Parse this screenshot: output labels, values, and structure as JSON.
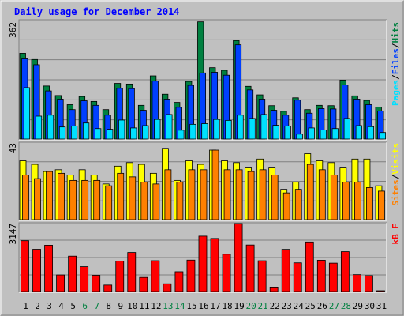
{
  "title": "Daily usage for December 2014",
  "panels": {
    "top": {
      "ymax_label": "362",
      "legend": [
        "Pages",
        "/",
        "Files",
        "/",
        "Hits"
      ]
    },
    "middle": {
      "ymax_label": "43",
      "legend": [
        "Sites",
        "/",
        "Visits"
      ]
    },
    "bottom": {
      "ymax_label": "3147",
      "legend": [
        "kB F"
      ]
    }
  },
  "colors": {
    "background": "#c0c0c0",
    "plot_bg": "#c0c0c0",
    "title": "#0000ff",
    "hits": "#008040",
    "files": "#0040ff",
    "pages": "#00e0ff",
    "visits": "#ffff00",
    "sites": "#ff8000",
    "kbytes": "#ff0000",
    "weekday_label": "#000000",
    "weekend_label": "#008040"
  },
  "chart_data": [
    {
      "type": "bar",
      "title": "Daily usage for December 2014",
      "categories": [
        "1",
        "2",
        "3",
        "4",
        "5",
        "6",
        "7",
        "8",
        "9",
        "10",
        "11",
        "12",
        "13",
        "14",
        "15",
        "16",
        "17",
        "18",
        "19",
        "20",
        "21",
        "22",
        "23",
        "24",
        "25",
        "26",
        "27",
        "28",
        "29",
        "30",
        "31"
      ],
      "weekend_days": [
        "6",
        "7",
        "13",
        "14",
        "20",
        "21",
        "27",
        "28"
      ],
      "ylim": [
        0,
        362
      ],
      "series": [
        {
          "name": "Hits",
          "values": [
            262,
            243,
            162,
            133,
            105,
            130,
            115,
            90,
            170,
            168,
            103,
            193,
            137,
            112,
            176,
            358,
            218,
            210,
            301,
            161,
            135,
            102,
            85,
            126,
            90,
            103,
            102,
            180,
            132,
            118,
            98
          ]
        },
        {
          "name": "Files",
          "values": [
            245,
            227,
            147,
            122,
            90,
            117,
            103,
            73,
            155,
            154,
            88,
            177,
            122,
            97,
            164,
            202,
            204,
            195,
            288,
            150,
            122,
            88,
            73,
            119,
            79,
            93,
            92,
            165,
            122,
            105,
            86
          ]
        },
        {
          "name": "Pages",
          "values": [
            157,
            70,
            73,
            37,
            40,
            49,
            32,
            30,
            58,
            34,
            41,
            60,
            75,
            27,
            45,
            47,
            60,
            57,
            73,
            63,
            75,
            42,
            40,
            15,
            34,
            28,
            32,
            63,
            41,
            38,
            20
          ]
        }
      ]
    },
    {
      "type": "bar",
      "categories": [
        "1",
        "2",
        "3",
        "4",
        "5",
        "6",
        "7",
        "8",
        "9",
        "10",
        "11",
        "12",
        "13",
        "14",
        "15",
        "16",
        "17",
        "18",
        "19",
        "20",
        "21",
        "22",
        "23",
        "24",
        "25",
        "26",
        "27",
        "28",
        "29",
        "30",
        "31"
      ],
      "ylim": [
        0,
        43
      ],
      "series": [
        {
          "name": "Visits",
          "values": [
            33,
            31,
            27,
            28,
            25,
            28,
            25,
            20,
            30,
            32,
            31,
            26,
            40,
            22,
            33,
            31,
            39,
            33,
            32,
            29,
            34,
            29,
            17,
            21,
            37,
            33,
            32,
            29,
            34,
            34,
            19
          ]
        },
        {
          "name": "Sites",
          "values": [
            25,
            23,
            27,
            26,
            22,
            22,
            22,
            19,
            26,
            24,
            21,
            20,
            28,
            21,
            28,
            28,
            39,
            28,
            28,
            27,
            28,
            25,
            15,
            17,
            31,
            28,
            25,
            21,
            21,
            18,
            16
          ]
        }
      ]
    },
    {
      "type": "bar",
      "categories": [
        "1",
        "2",
        "3",
        "4",
        "5",
        "6",
        "7",
        "8",
        "9",
        "10",
        "11",
        "12",
        "13",
        "14",
        "15",
        "16",
        "17",
        "18",
        "19",
        "20",
        "21",
        "22",
        "23",
        "24",
        "25",
        "26",
        "27",
        "28",
        "29",
        "30",
        "31"
      ],
      "ylim": [
        0,
        3147
      ],
      "series": [
        {
          "name": "kB F",
          "values": [
            2353,
            1957,
            2144,
            766,
            1639,
            1149,
            752,
            298,
            1407,
            1808,
            652,
            1427,
            357,
            916,
            1454,
            2565,
            2457,
            1728,
            3147,
            2153,
            1425,
            205,
            1952,
            1327,
            2294,
            1448,
            1313,
            1845,
            780,
            734,
            1
          ]
        }
      ]
    }
  ]
}
